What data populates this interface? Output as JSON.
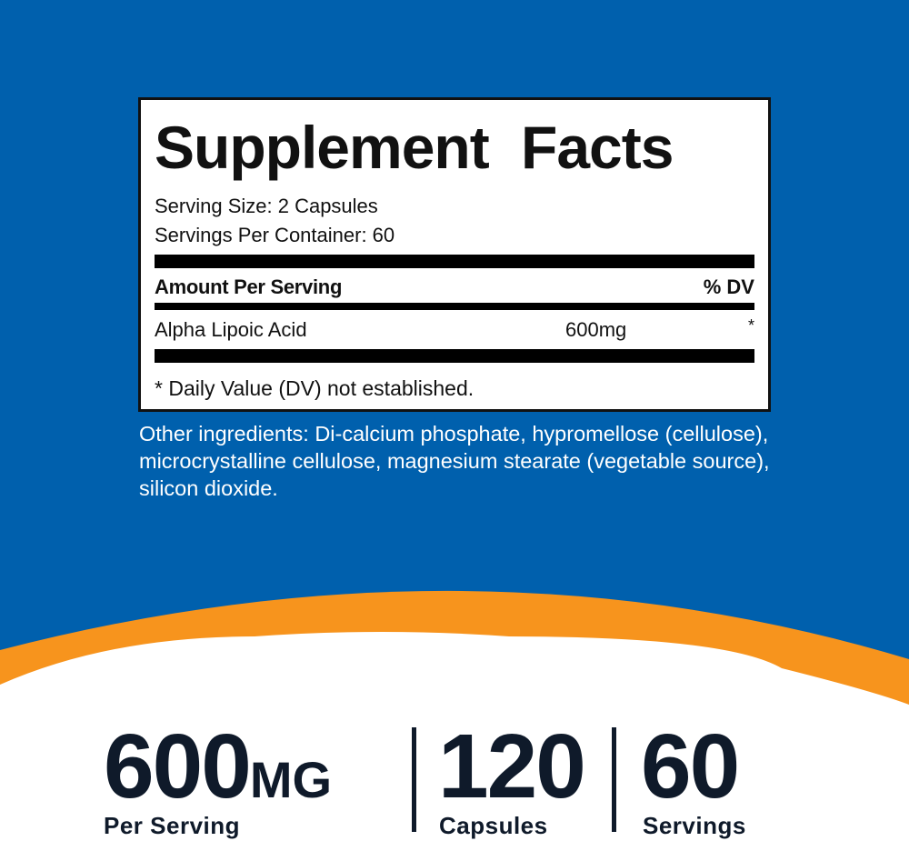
{
  "colors": {
    "blue": "#0060ad",
    "orange": "#f7941d",
    "dark": "#0f1a2a"
  },
  "facts": {
    "title": "Supplement Facts",
    "serving_size": "Serving Size: 2 Capsules",
    "servings_per_container": "Servings Per Container: 60",
    "amount_header": "Amount Per Serving",
    "dv_header": "% DV",
    "ingredient": {
      "name": "Alpha Lipoic Acid",
      "amount": "600mg",
      "dv": "*"
    },
    "footnote": "* Daily Value (DV) not established."
  },
  "other_ingredients": "Other ingredients: Di-calcium phosphate, hypromellose (cellulose), microcrystalline cellulose, magnesium stearate (vegetable source), silicon dioxide.",
  "stats": [
    {
      "value": "600",
      "unit": "MG",
      "label": "Per Serving"
    },
    {
      "value": "120",
      "label": "Capsules"
    },
    {
      "value": "60",
      "label": "Servings"
    }
  ]
}
